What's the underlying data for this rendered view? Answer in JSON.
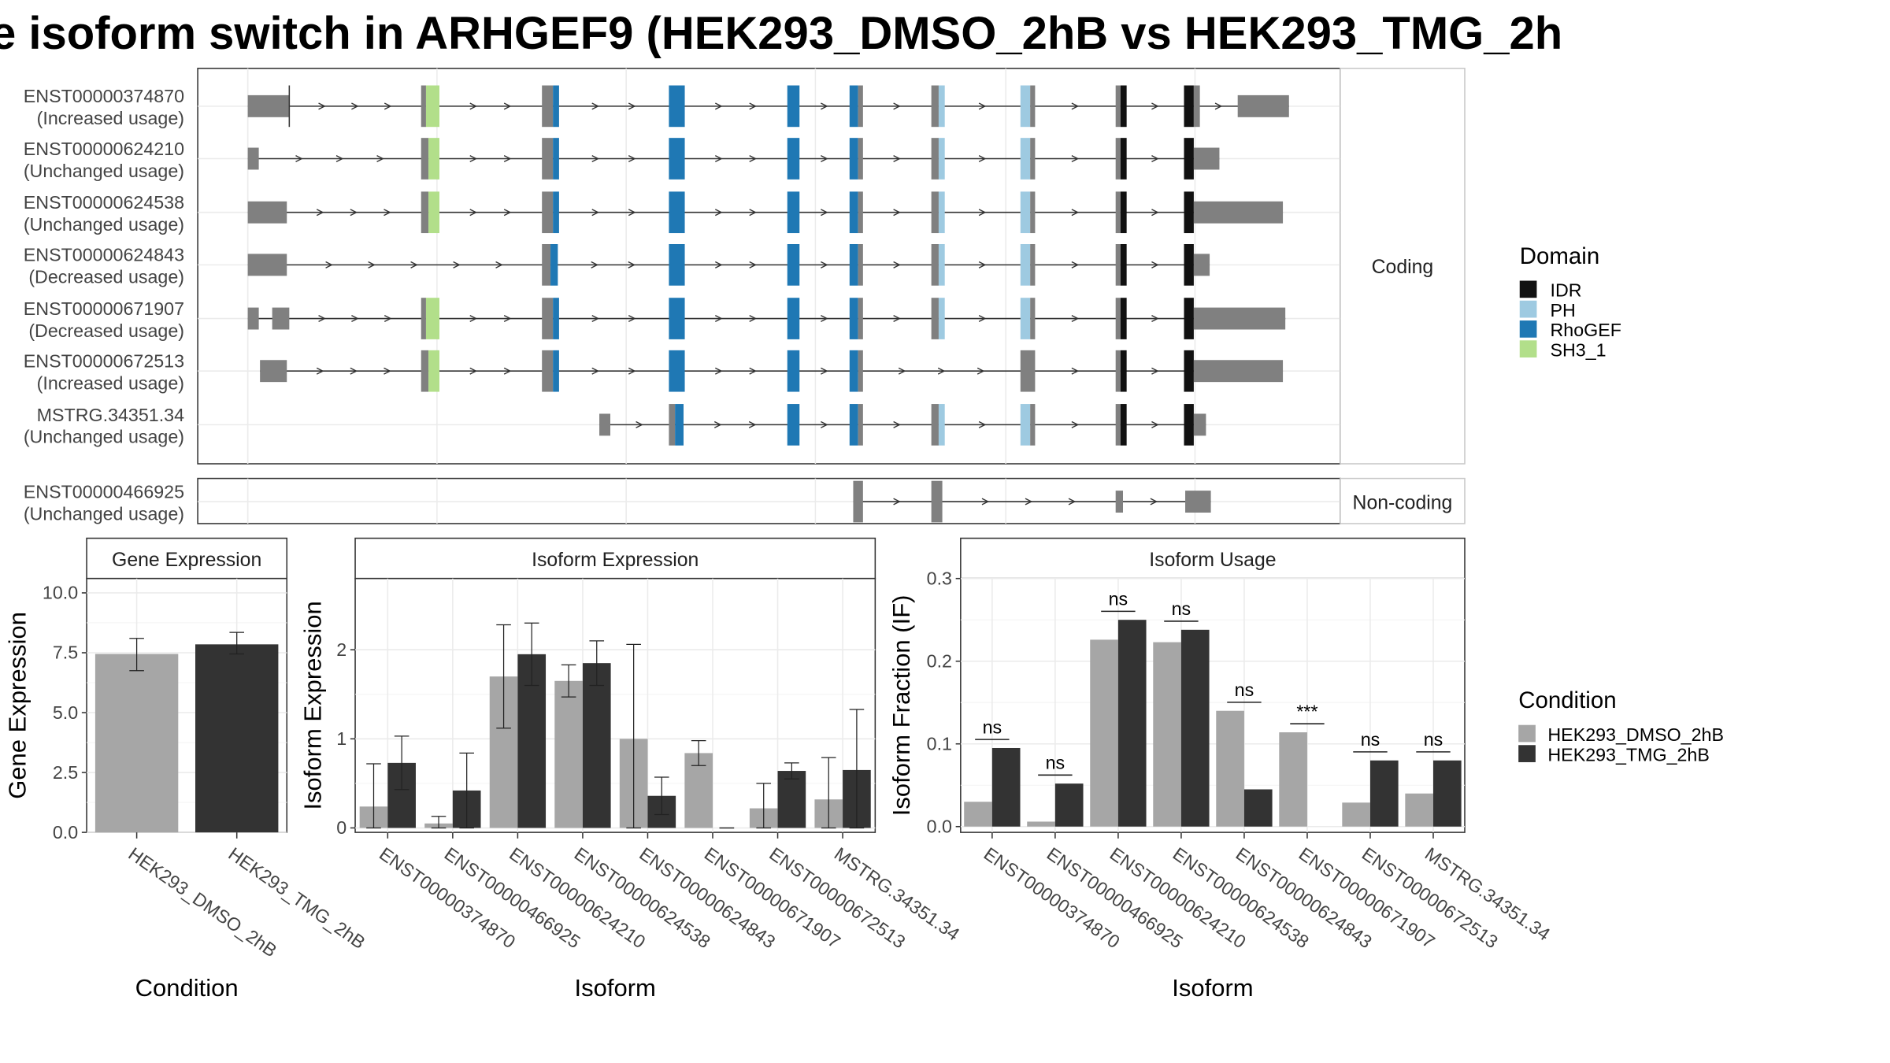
{
  "figure": {
    "title": "e isoform switch in ARHGEF9 (HEK293_DMSO_2hB vs HEK293_TMG_2h",
    "colors": {
      "exon": "#808080",
      "IDR": "#111111",
      "PH": "#9ecae1",
      "RhoGEF": "#1f78b4",
      "SH3_1": "#b2df8a",
      "DMSO": "#a6a6a6",
      "TMG": "#333333"
    }
  },
  "chart_data": [
    {
      "type": "gene-structure",
      "panels": [
        {
          "strip": "Coding",
          "transcripts": [
            {
              "id": "ENST00000374870",
              "usage": "(Increased usage)"
            },
            {
              "id": "ENST00000624210",
              "usage": "(Unchanged usage)"
            },
            {
              "id": "ENST00000624538",
              "usage": "(Unchanged usage)"
            },
            {
              "id": "ENST00000624843",
              "usage": "(Decreased usage)"
            },
            {
              "id": "ENST00000671907",
              "usage": "(Decreased usage)"
            },
            {
              "id": "ENST00000672513",
              "usage": "(Increased usage)"
            },
            {
              "id": "MSTRG.34351.34",
              "usage": "(Unchanged usage)"
            }
          ]
        },
        {
          "strip": "Non-coding",
          "transcripts": [
            {
              "id": "ENST00000466925",
              "usage": "(Unchanged usage)"
            }
          ]
        }
      ],
      "legend": {
        "title": "Domain",
        "items": [
          "IDR",
          "PH",
          "RhoGEF",
          "SH3_1"
        ]
      }
    },
    {
      "type": "bar",
      "strip": "Gene Expression",
      "xlabel": "Condition",
      "ylabel": "Gene Expression",
      "categories": [
        "HEK293_DMSO_2hB",
        "HEK293_TMG_2hB"
      ],
      "values": [
        7.45,
        7.85
      ],
      "errors": [
        [
          6.75,
          8.1
        ],
        [
          7.45,
          8.35
        ]
      ],
      "ylim": [
        0,
        10.6
      ],
      "yticks": [
        "0.0",
        "2.5",
        "5.0",
        "7.5",
        "10.0"
      ],
      "ytick_values": [
        0,
        2.5,
        5,
        7.5,
        10
      ],
      "grid": true
    },
    {
      "type": "bar",
      "strip": "Isoform Expression",
      "xlabel": "Isoform",
      "ylabel": "Isoform Expression",
      "categories": [
        "ENST00000374870",
        "ENST00000466925",
        "ENST00000624210",
        "ENST00000624538",
        "ENST00000624843",
        "ENST00000671907",
        "ENST00000672513",
        "MSTRG.34351.34"
      ],
      "series": [
        {
          "name": "HEK293_DMSO_2hB",
          "values": [
            0.24,
            0.05,
            1.7,
            1.65,
            1.0,
            0.84,
            0.22,
            0.32
          ],
          "errors": [
            [
              0,
              0.72
            ],
            [
              0,
              0.13
            ],
            [
              1.12,
              2.28
            ],
            [
              1.47,
              1.83
            ],
            [
              0,
              2.06
            ],
            [
              0.7,
              0.98
            ],
            [
              0,
              0.5
            ],
            [
              0,
              0.79
            ]
          ]
        },
        {
          "name": "HEK293_TMG_2hB",
          "values": [
            0.73,
            0.42,
            1.95,
            1.85,
            0.36,
            0.0,
            0.64,
            0.65
          ],
          "errors": [
            [
              0.43,
              1.03
            ],
            [
              0,
              0.84
            ],
            [
              1.6,
              2.3
            ],
            [
              1.6,
              2.1
            ],
            [
              0.15,
              0.57
            ],
            [
              0,
              0
            ],
            [
              0.55,
              0.73
            ],
            [
              0,
              1.33
            ]
          ]
        }
      ],
      "ylim": [
        -0.05,
        2.8
      ],
      "yticks": [
        "0",
        "1",
        "2"
      ],
      "ytick_values": [
        0,
        1,
        2
      ],
      "grid": true
    },
    {
      "type": "bar",
      "strip": "Isoform Usage",
      "xlabel": "Isoform",
      "ylabel": "Isoform Fraction (IF)",
      "categories": [
        "ENST00000374870",
        "ENST00000466925",
        "ENST00000624210",
        "ENST00000624538",
        "ENST00000624843",
        "ENST00000671907",
        "ENST00000672513",
        "MSTRG.34351.34"
      ],
      "series": [
        {
          "name": "HEK293_DMSO_2hB",
          "values": [
            0.03,
            0.006,
            0.226,
            0.223,
            0.14,
            0.114,
            0.029,
            0.04
          ]
        },
        {
          "name": "HEK293_TMG_2hB",
          "values": [
            0.095,
            0.052,
            0.25,
            0.238,
            0.045,
            0.0,
            0.08,
            0.08
          ]
        }
      ],
      "annotations": [
        "ns",
        "ns",
        "ns",
        "ns",
        "ns",
        "***",
        "ns",
        "ns"
      ],
      "ylim": [
        -0.007,
        0.3
      ],
      "yticks": [
        "0.0",
        "0.1",
        "0.2",
        "0.3"
      ],
      "ytick_values": [
        0,
        0.1,
        0.2,
        0.3
      ],
      "grid": true,
      "legend": {
        "title": "Condition",
        "items": [
          "HEK293_DMSO_2hB",
          "HEK293_TMG_2hB"
        ]
      }
    }
  ]
}
